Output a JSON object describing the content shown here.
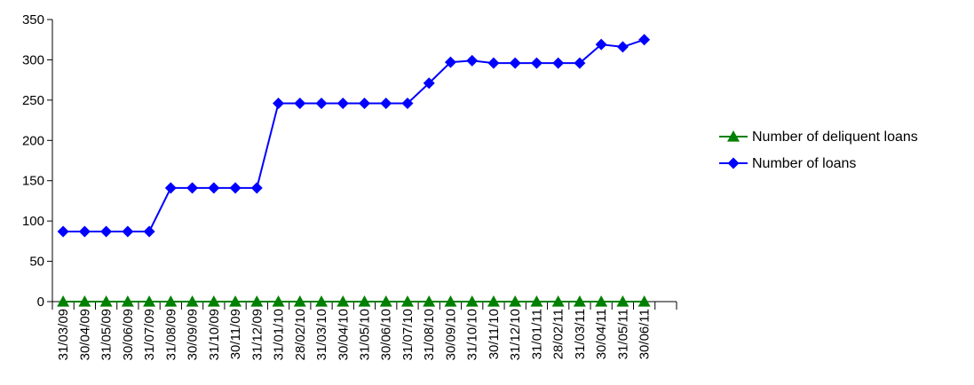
{
  "chart_data": {
    "type": "line",
    "categories": [
      "31/03/09",
      "30/04/09",
      "31/05/09",
      "30/06/09",
      "31/07/09",
      "31/08/09",
      "30/09/09",
      "31/10/09",
      "30/11/09",
      "31/12/09",
      "31/01/10",
      "28/02/10",
      "31/03/10",
      "30/04/10",
      "31/05/10",
      "30/06/10",
      "31/07/10",
      "31/08/10",
      "30/09/10",
      "31/10/10",
      "30/11/10",
      "31/12/10",
      "31/01/11",
      "28/02/11",
      "31/03/11",
      "30/04/11",
      "31/05/11",
      "30/06/11"
    ],
    "series": [
      {
        "name": "Number of deliquent loans",
        "color": "#008000",
        "marker": "triangle",
        "values": [
          0,
          0,
          0,
          0,
          0,
          0,
          0,
          0,
          0,
          0,
          0,
          0,
          0,
          0,
          0,
          0,
          0,
          0,
          0,
          0,
          0,
          0,
          0,
          0,
          0,
          0,
          0,
          0
        ]
      },
      {
        "name": "Number of loans",
        "color": "#0000FF",
        "marker": "diamond",
        "values": [
          87,
          87,
          87,
          87,
          87,
          141,
          141,
          141,
          141,
          141,
          246,
          246,
          246,
          246,
          246,
          246,
          246,
          271,
          297,
          299,
          296,
          296,
          296,
          296,
          296,
          319,
          316,
          325
        ]
      }
    ],
    "yticks": [
      0,
      50,
      100,
      150,
      200,
      250,
      300,
      350
    ],
    "ylim": [
      0,
      350
    ],
    "grid": false,
    "legend": "right"
  }
}
